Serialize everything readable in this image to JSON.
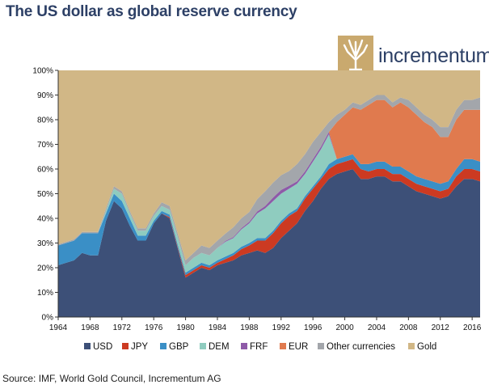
{
  "title": "The US dollar as global reserve currency",
  "logo": {
    "name": "incrementum",
    "color": "#c9a96e"
  },
  "source": "Source: IMF, World Gold Council, Incrementum AG",
  "chart_data": {
    "type": "area",
    "stacked": true,
    "title": "The US dollar as global reserve currency",
    "xlabel": "",
    "ylabel": "",
    "xlim": [
      1964,
      2017
    ],
    "ylim": [
      0,
      100
    ],
    "x_ticks": [
      1964,
      1968,
      1972,
      1976,
      1980,
      1984,
      1988,
      1992,
      1996,
      2000,
      2004,
      2008,
      2012,
      2016
    ],
    "y_ticks": [
      "0%",
      "10%",
      "20%",
      "30%",
      "40%",
      "50%",
      "60%",
      "70%",
      "80%",
      "90%",
      "100%"
    ],
    "x": [
      1964,
      1965,
      1966,
      1967,
      1968,
      1969,
      1970,
      1971,
      1972,
      1973,
      1974,
      1975,
      1976,
      1977,
      1978,
      1979,
      1980,
      1981,
      1982,
      1983,
      1984,
      1985,
      1986,
      1987,
      1988,
      1989,
      1990,
      1991,
      1992,
      1993,
      1994,
      1995,
      1996,
      1997,
      1998,
      1999,
      2000,
      2001,
      2002,
      2003,
      2004,
      2005,
      2006,
      2007,
      2008,
      2009,
      2010,
      2011,
      2012,
      2013,
      2014,
      2015,
      2016,
      2017
    ],
    "series": [
      {
        "name": "USD",
        "color": "#3d5078",
        "values": [
          21,
          22,
          23,
          26,
          25,
          25,
          39,
          47,
          44,
          37,
          31,
          31,
          38,
          42,
          40,
          28,
          16,
          18,
          20,
          19,
          21,
          22,
          23,
          25,
          26,
          27,
          26,
          28,
          32,
          35,
          38,
          43,
          47,
          52,
          56,
          58,
          59,
          60,
          56,
          56,
          57,
          57,
          55,
          55,
          53,
          51,
          50,
          49,
          48,
          49,
          53,
          56,
          56,
          55
        ]
      },
      {
        "name": "JPY",
        "color": "#cc3a22",
        "values": [
          0,
          0,
          0,
          0,
          0,
          0,
          0,
          0,
          0,
          0,
          0,
          0,
          0,
          0,
          0.5,
          0.5,
          1,
          1,
          1,
          1,
          1,
          1.5,
          2,
          2.5,
          3,
          4,
          5,
          6,
          6,
          6,
          5,
          5,
          5,
          4,
          4,
          4,
          4,
          4,
          4,
          3,
          3,
          3,
          3,
          3,
          3,
          3,
          3,
          3,
          3,
          3,
          4,
          4,
          4,
          4
        ]
      },
      {
        "name": "GBP",
        "color": "#3a8fc6",
        "values": [
          8,
          8,
          8,
          8,
          9,
          9,
          3,
          3,
          3,
          3,
          2,
          2,
          1,
          1,
          1,
          1,
          1,
          1,
          1,
          1,
          1,
          1,
          1,
          1,
          1,
          1,
          1,
          1,
          1,
          1,
          1,
          1,
          1,
          1,
          2,
          2,
          2,
          2,
          2,
          3,
          3,
          3,
          3,
          3,
          3,
          3,
          3,
          3,
          3,
          3,
          3,
          4,
          4,
          4
        ]
      },
      {
        "name": "DEM",
        "color": "#8fccbf",
        "values": [
          0,
          0,
          0,
          0,
          0,
          0,
          1,
          2,
          3,
          2,
          2,
          2,
          2,
          2,
          2,
          3,
          3,
          4,
          4,
          4,
          5,
          6,
          6,
          7,
          8,
          10,
          12,
          12,
          11,
          10,
          10,
          9,
          10,
          11,
          12,
          0,
          0,
          0,
          0,
          0,
          0,
          0,
          0,
          0,
          0,
          0,
          0,
          0,
          0,
          0,
          0,
          0,
          0,
          0
        ]
      },
      {
        "name": "FRF",
        "color": "#8e5aa8",
        "values": [
          0,
          0,
          0,
          0,
          0,
          0,
          0,
          0,
          0,
          0,
          0,
          0,
          0,
          0,
          0,
          0,
          0,
          0,
          0,
          0,
          0,
          0.3,
          0.4,
          0.5,
          0.6,
          0.8,
          1,
          1.5,
          1.5,
          1.2,
          1,
          1,
          1,
          1,
          1,
          0,
          0,
          0,
          0,
          0,
          0,
          0,
          0,
          0,
          0,
          0,
          0,
          0,
          0,
          0,
          0,
          0,
          0,
          0
        ]
      },
      {
        "name": "EUR",
        "color": "#e07a4e",
        "values": [
          0,
          0,
          0,
          0,
          0,
          0,
          0,
          0,
          0,
          0,
          0,
          0,
          0,
          0,
          0,
          0,
          0,
          0,
          0,
          0,
          0,
          0,
          0,
          0,
          0,
          0,
          0,
          0,
          0,
          0,
          0,
          0,
          0,
          0,
          0,
          15,
          17,
          19,
          22,
          24,
          25,
          25,
          24,
          26,
          26,
          25,
          23,
          22,
          19,
          18,
          20,
          20,
          20,
          21
        ]
      },
      {
        "name": "Other currencies",
        "color": "#a3a6ab",
        "values": [
          0.5,
          0.5,
          0.5,
          0.5,
          0.5,
          0.5,
          1,
          1,
          1,
          1,
          1,
          1,
          1,
          1.5,
          1.5,
          1.5,
          2,
          2,
          3,
          3,
          3,
          3,
          4,
          4,
          4,
          5,
          6,
          6,
          6,
          6,
          7,
          7,
          7,
          6,
          4,
          3,
          2,
          2,
          2,
          2,
          2,
          2,
          2,
          2,
          3,
          3,
          3,
          3,
          4,
          4,
          4,
          4,
          4,
          5
        ]
      },
      {
        "name": "Gold",
        "color": "#d1b786",
        "values": [
          70.5,
          69.5,
          68.5,
          65.5,
          65.5,
          65.5,
          56,
          47,
          49,
          57,
          64,
          64,
          58,
          53.5,
          55,
          66,
          77,
          74,
          71,
          72,
          69,
          67.2,
          63.6,
          60,
          57.4,
          52.2,
          49,
          45.5,
          42.5,
          40.8,
          38,
          34,
          29,
          25,
          21,
          18,
          18,
          13,
          16,
          12,
          10,
          10,
          13,
          11,
          15,
          18,
          21,
          23,
          26,
          26,
          16,
          12,
          12,
          11
        ]
      }
    ]
  }
}
